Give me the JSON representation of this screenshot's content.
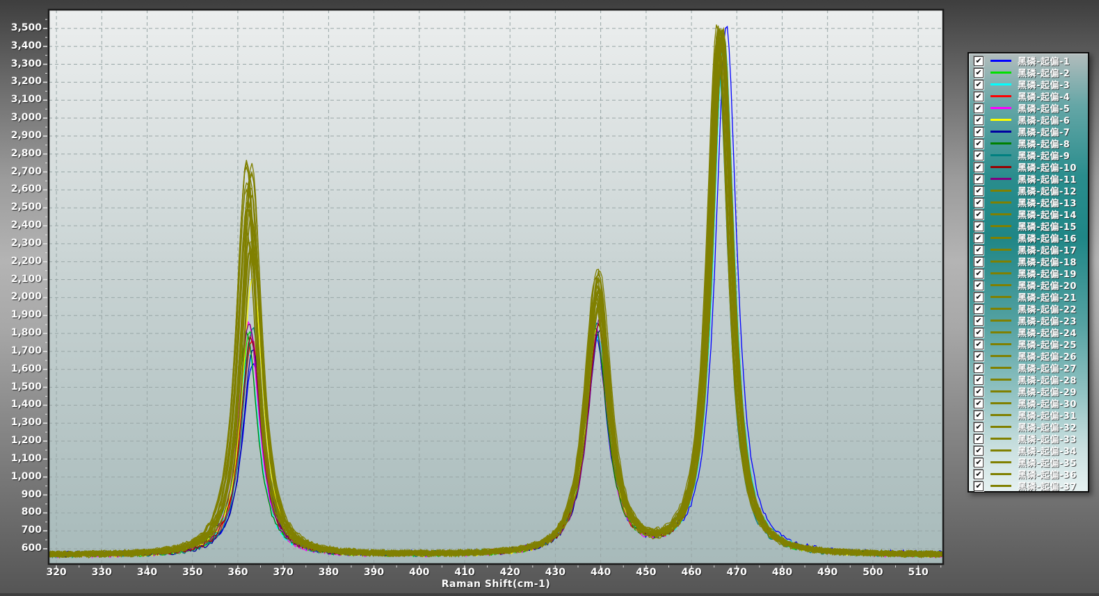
{
  "axes": {
    "x_title": "Raman Shift(cm-1)",
    "y_tick_format": "thousands-comma"
  },
  "legend": {
    "position": "right",
    "all_checked": true,
    "checkmark_glyph": "✔"
  },
  "chart_data": {
    "type": "line",
    "title": "",
    "xlabel": "Raman Shift(cm-1)",
    "ylabel": "",
    "xlim": [
      318.3,
      515.5
    ],
    "ylim": [
      515,
      3604
    ],
    "x_major_ticks": [
      320,
      330,
      340,
      350,
      360,
      370,
      380,
      390,
      400,
      410,
      420,
      430,
      440,
      450,
      460,
      470,
      480,
      490,
      500,
      510
    ],
    "y_major_ticks": [
      600,
      700,
      800,
      900,
      1000,
      1100,
      1200,
      1300,
      1400,
      1500,
      1600,
      1700,
      1800,
      1900,
      2000,
      2100,
      2200,
      2300,
      2400,
      2500,
      2600,
      2700,
      2800,
      2900,
      3000,
      3100,
      3200,
      3300,
      3400,
      3500
    ],
    "x_minor_step": 5,
    "y_minor_step": 50,
    "grid": "dashed",
    "plot_bg_top": "#eceeee",
    "plot_bg_bottom": "#a7baba",
    "grid_color": "#98a6a6",
    "baseline": 566,
    "noise_amplitude": 13,
    "peak_centers": [
      362.7,
      439.3,
      466.4
    ],
    "peak_hwhm": [
      3.2,
      3.6,
      3.2
    ],
    "series": [
      {
        "name": "黑磷-起偏-1",
        "color": "#0000ff",
        "amps": [
          1060,
          1215,
          2940
        ]
      },
      {
        "name": "黑磷-起偏-2",
        "color": "#00e000",
        "amps": [
          1240,
          1235,
          2915
        ]
      },
      {
        "name": "黑磷-起偏-3",
        "color": "#00ffff",
        "amps": [
          1120,
          1200,
          2880
        ]
      },
      {
        "name": "黑磷-起偏-4",
        "color": "#ff0000",
        "amps": [
          1195,
          1260,
          2862
        ]
      },
      {
        "name": "黑磷-起偏-5",
        "color": "#ff00ff",
        "amps": [
          1300,
          1268,
          2845
        ]
      },
      {
        "name": "黑磷-起偏-6",
        "color": "#ffff00",
        "amps": [
          1555,
          1282,
          2858
        ]
      },
      {
        "name": "黑磷-起偏-7",
        "color": "#0000a0",
        "amps": [
          1150,
          1245,
          2902
        ]
      },
      {
        "name": "黑磷-起偏-8",
        "color": "#008000",
        "amps": [
          1235,
          1254,
          2836
        ]
      },
      {
        "name": "黑磷-起偏-9",
        "color": "#008080",
        "amps": [
          1270,
          1290,
          2822
        ]
      },
      {
        "name": "黑磷-起偏-10",
        "color": "#990000",
        "amps": [
          1210,
          1262,
          2843
        ]
      },
      {
        "name": "黑磷-起偏-11",
        "color": "#800080",
        "amps": [
          1295,
          1302,
          2851
        ]
      },
      {
        "name": "黑磷-起偏-12",
        "color": "#808000",
        "amps": [
          1690,
          1385,
          2868
        ]
      },
      {
        "name": "黑磷-起偏-13",
        "color": "#808000",
        "amps": [
          1755,
          1402,
          2893
        ]
      },
      {
        "name": "黑磷-起偏-14",
        "color": "#808000",
        "amps": [
          1820,
          1418,
          2915
        ]
      },
      {
        "name": "黑磷-起偏-15",
        "color": "#808000",
        "amps": [
          1885,
          1436,
          2882
        ]
      },
      {
        "name": "黑磷-起偏-16",
        "color": "#808000",
        "amps": [
          1945,
          1452,
          2904
        ]
      },
      {
        "name": "黑磷-起偏-17",
        "color": "#808000",
        "amps": [
          2000,
          1468,
          2926
        ]
      },
      {
        "name": "黑磷-起偏-18",
        "color": "#808000",
        "amps": [
          2052,
          1484,
          2890
        ]
      },
      {
        "name": "黑磷-起偏-19",
        "color": "#808000",
        "amps": [
          2098,
          1500,
          2912
        ]
      },
      {
        "name": "黑磷-起偏-20",
        "color": "#808000",
        "amps": [
          2138,
          1516,
          2934
        ]
      },
      {
        "name": "黑磷-起偏-21",
        "color": "#808000",
        "amps": [
          2170,
          1530,
          2898
        ]
      },
      {
        "name": "黑磷-起偏-22",
        "color": "#808000",
        "amps": [
          2192,
          1543,
          2918
        ]
      },
      {
        "name": "黑磷-起偏-23",
        "color": "#808000",
        "amps": [
          2200,
          1554,
          2880
        ]
      },
      {
        "name": "黑磷-起偏-24",
        "color": "#808000",
        "amps": [
          2186,
          1576,
          2906
        ]
      },
      {
        "name": "黑磷-起偏-25",
        "color": "#808000",
        "amps": [
          2160,
          1568,
          2928
        ]
      },
      {
        "name": "黑磷-起偏-26",
        "color": "#808000",
        "amps": [
          2124,
          1556,
          2892
        ]
      },
      {
        "name": "黑磷-起偏-27",
        "color": "#808000",
        "amps": [
          2080,
          1540,
          2914
        ]
      },
      {
        "name": "黑磷-起偏-28",
        "color": "#808000",
        "amps": [
          2030,
          1522,
          2872
        ]
      },
      {
        "name": "黑磷-起偏-29",
        "color": "#808000",
        "amps": [
          1976,
          1502,
          2896
        ]
      },
      {
        "name": "黑磷-起偏-30",
        "color": "#808000",
        "amps": [
          1920,
          1480,
          2920
        ]
      },
      {
        "name": "黑磷-起偏-31",
        "color": "#808000",
        "amps": [
          1864,
          1456,
          2884
        ]
      },
      {
        "name": "黑磷-起偏-32",
        "color": "#808000",
        "amps": [
          1810,
          1430,
          2908
        ]
      },
      {
        "name": "黑磷-起偏-33",
        "color": "#808000",
        "amps": [
          1760,
          1404,
          2930
        ]
      },
      {
        "name": "黑磷-起偏-34",
        "color": "#808000",
        "amps": [
          1716,
          1380,
          2894
        ]
      },
      {
        "name": "黑磷-起偏-35",
        "color": "#808000",
        "amps": [
          1680,
          1408,
          2916
        ]
      },
      {
        "name": "黑磷-起偏-36",
        "color": "#808000",
        "amps": [
          1700,
          1436,
          2876
        ]
      },
      {
        "name": "黑磷-起偏-37",
        "color": "#808000",
        "amps": [
          1730,
          1460,
          2898
        ]
      }
    ]
  }
}
